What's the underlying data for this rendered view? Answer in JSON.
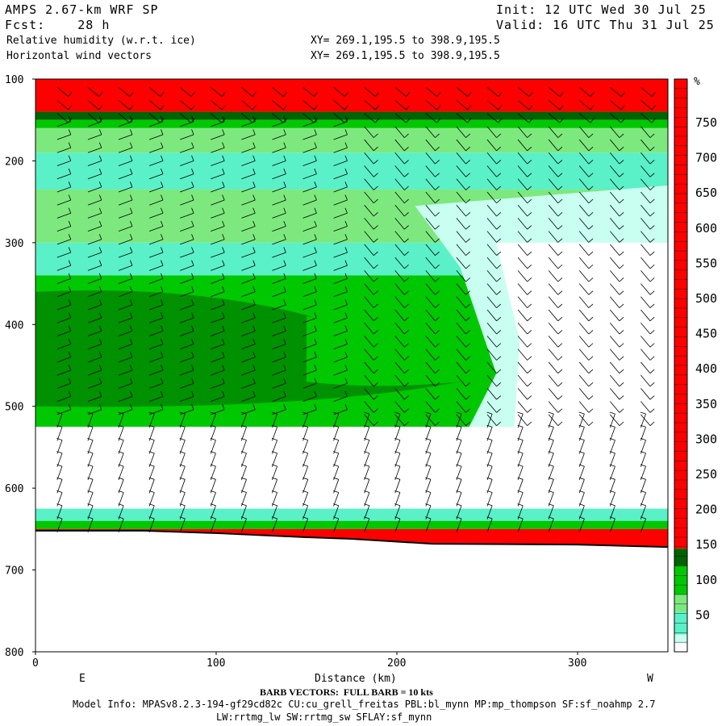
{
  "header": {
    "model": "AMPS 2.67-km WRF SP",
    "forecast": "Fcst:    28 h",
    "init": "Init: 12 UTC Wed 30 Jul 25",
    "valid": "Valid: 16 UTC Thu 31 Jul 25",
    "field1": "Relative humidity (w.r.t. ice)",
    "field2": "Horizontal wind vectors",
    "xy1": "XY= 269.1,195.5 to 398.9,195.5",
    "xy2": "XY= 269.1,195.5 to 398.9,195.5"
  },
  "footer": {
    "distance_label": "Distance (km)",
    "barb_note": "BARB VECTORS:  FULL BARB = 10 kts",
    "model_info": "Model Info: MPASv8.2.3-194-gf29cd82c CU:cu_grell_freitas PBL:bl_mynn MP:mp_thompson SF:sf_noahmp 2.7",
    "model_info2": "LW:rrtmg_lw SW:rrtmg_sw SFLAY:sf_mynn",
    "left_end": "E",
    "right_end": "W"
  },
  "colorbar": {
    "unit": "%",
    "labels": [
      "750",
      "700",
      "650",
      "600",
      "550",
      "500",
      "450",
      "400",
      "350",
      "300",
      "250",
      "200",
      "150",
      "100",
      "50"
    ]
  },
  "colors": {
    "red": "#ff0000",
    "dark_green": "#006400",
    "green": "#00c800",
    "light_green": "#7de87d",
    "cyan": "#5af0c8",
    "pale_cyan": "#c8fff0",
    "white": "#ffffff"
  },
  "chart_data": {
    "type": "heatmap",
    "xlabel": "Distance (km)",
    "ylabel": "",
    "xlim": [
      0,
      350
    ],
    "ylim": [
      800,
      100
    ],
    "x_ticks": [
      0,
      100,
      200,
      300
    ],
    "y_ticks": [
      100,
      200,
      300,
      400,
      500,
      600,
      700,
      800
    ],
    "surface_pressure": [
      [
        0,
        652
      ],
      [
        60,
        652
      ],
      [
        100,
        655
      ],
      [
        150,
        660
      ],
      [
        175,
        662
      ],
      [
        220,
        668
      ],
      [
        300,
        669
      ],
      [
        350,
        672
      ]
    ]
  }
}
